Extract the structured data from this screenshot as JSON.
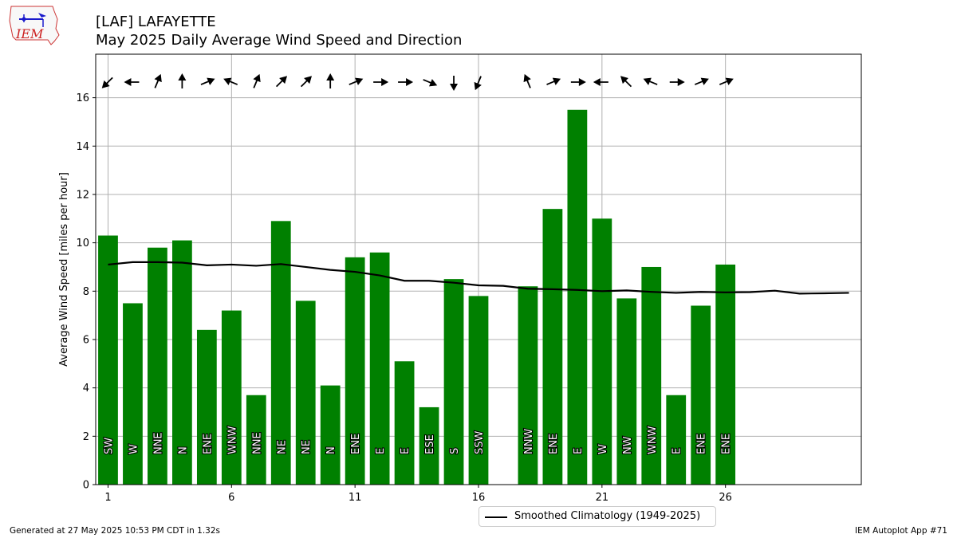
{
  "header": {
    "title_line1": "[LAF] LAFAYETTE",
    "title_line2": "May 2025 Daily Average Wind Speed and Direction",
    "logo_text": "IEM"
  },
  "footer": {
    "generated": "Generated at 27 May 2025 10:53 PM CDT in 1.32s",
    "app": "IEM Autoplot App #71"
  },
  "legend": {
    "label": "Smoothed Climatology (1949-2025)"
  },
  "colors": {
    "bar": "#008000",
    "climo": "#000000",
    "grid": "#b0b0b0"
  },
  "chart_data": {
    "type": "bar",
    "ylabel": "Average Wind Speed [miles per hour]",
    "xlabel": "",
    "xlim": [
      0.5,
      31.5
    ],
    "ylim": [
      0,
      17.8
    ],
    "xticks": [
      1,
      6,
      11,
      16,
      21,
      26
    ],
    "yticks": [
      0,
      2,
      4,
      6,
      8,
      10,
      12,
      14,
      16
    ],
    "grid": true,
    "legend_position": "bottom-center",
    "days": [
      1,
      2,
      3,
      4,
      5,
      6,
      7,
      8,
      9,
      10,
      11,
      12,
      13,
      14,
      15,
      16,
      18,
      19,
      20,
      21,
      22,
      23,
      24,
      25,
      26
    ],
    "values": [
      10.3,
      7.5,
      9.8,
      10.1,
      6.4,
      7.2,
      3.7,
      10.9,
      7.6,
      4.1,
      9.4,
      9.6,
      5.1,
      3.2,
      8.5,
      7.8,
      8.2,
      11.4,
      15.5,
      11.0,
      7.7,
      9.0,
      3.7,
      7.4,
      9.1
    ],
    "directions": [
      "SW",
      "W",
      "NNE",
      "N",
      "ENE",
      "WNW",
      "NNE",
      "NE",
      "NE",
      "N",
      "ENE",
      "E",
      "E",
      "ESE",
      "S",
      "SSW",
      "NNW",
      "ENE",
      "E",
      "W",
      "NW",
      "WNW",
      "E",
      "ENE",
      "ENE"
    ],
    "arrow_directions_deg": [
      225,
      270,
      22.5,
      0,
      67.5,
      292.5,
      22.5,
      45,
      45,
      0,
      67.5,
      90,
      90,
      112.5,
      180,
      202.5,
      337.5,
      67.5,
      90,
      270,
      315,
      292.5,
      90,
      67.5,
      67.5
    ],
    "climatology": {
      "name": "Smoothed Climatology (1949-2025)",
      "days": [
        1,
        2,
        3,
        4,
        5,
        6,
        7,
        8,
        9,
        10,
        11,
        12,
        13,
        14,
        15,
        16,
        17,
        18,
        19,
        20,
        21,
        22,
        23,
        24,
        25,
        26,
        27,
        28,
        29,
        30,
        31
      ],
      "values": [
        9.1,
        9.2,
        9.2,
        9.18,
        9.07,
        9.1,
        9.05,
        9.12,
        9.0,
        8.88,
        8.8,
        8.65,
        8.43,
        8.43,
        8.35,
        8.24,
        8.22,
        8.1,
        8.08,
        8.05,
        8.0,
        8.03,
        7.97,
        7.93,
        7.97,
        7.95,
        7.96,
        8.02,
        7.9,
        7.91,
        7.93
      ]
    }
  }
}
